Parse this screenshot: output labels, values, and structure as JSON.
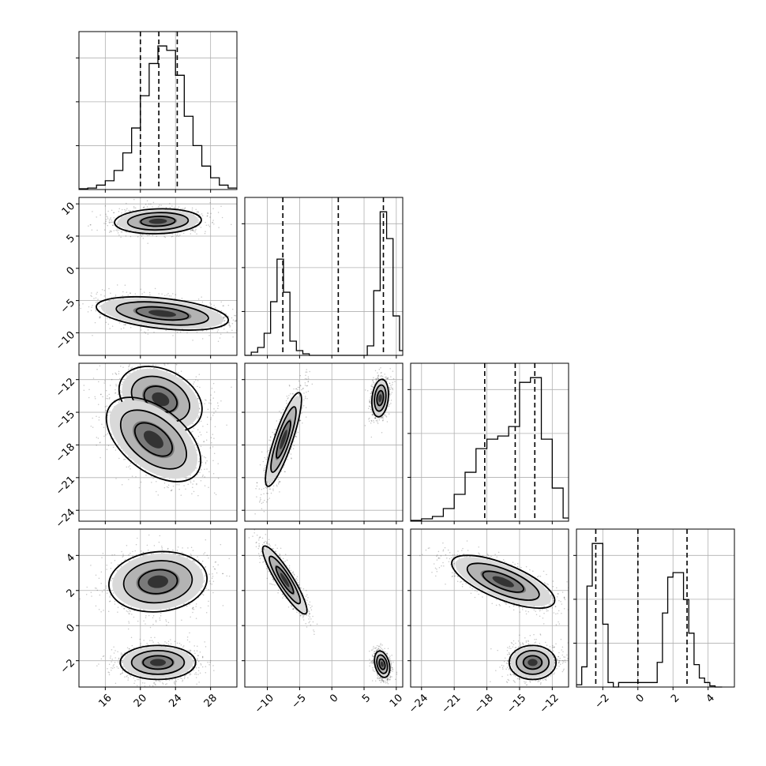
{
  "chart_data": {
    "type": "corner",
    "parameters": 4,
    "grid": true,
    "params": [
      {
        "range": [
          13,
          31
        ],
        "ticks": [
          16,
          20,
          24,
          28
        ],
        "tick_labels": [
          "16",
          "20",
          "24",
          "28"
        ]
      },
      {
        "range": [
          -13.5,
          11
        ],
        "ticks": [
          -10,
          -5,
          0,
          5,
          10
        ],
        "tick_labels": [
          "−10",
          "−5",
          "0",
          "5",
          "10"
        ]
      },
      {
        "range": [
          -25,
          -10.5
        ],
        "ticks": [
          -24,
          -21,
          -18,
          -15,
          -12
        ],
        "tick_labels": [
          "−24",
          "−21",
          "−18",
          "−15",
          "−12"
        ]
      },
      {
        "range": [
          -3.5,
          5.5
        ],
        "ticks": [
          -2,
          0,
          2,
          4
        ],
        "tick_labels": [
          "−2",
          "0",
          "2",
          "4"
        ]
      }
    ],
    "histograms": [
      {
        "param": 0,
        "edges": [
          13,
          14,
          15,
          16,
          17,
          18,
          19,
          20,
          21,
          22,
          23,
          24,
          25,
          26,
          27,
          28,
          29,
          30,
          31
        ],
        "counts": [
          0.5,
          1,
          3,
          6,
          13,
          25,
          42,
          64,
          86,
          98,
          95,
          78,
          50,
          30,
          16,
          8,
          3,
          1
        ],
        "quantiles": [
          20,
          22.1,
          24.2
        ]
      },
      {
        "param": 1,
        "edges": [
          -13.5,
          -12.5,
          -11.5,
          -10.5,
          -9.5,
          -8.5,
          -7.5,
          -6.5,
          -5.5,
          -4.5,
          -3.5,
          5.5,
          6.5,
          7.5,
          8.5,
          9.5,
          10.5,
          11
        ],
        "counts": [
          0,
          2,
          5,
          14,
          34,
          61,
          40,
          9,
          3,
          1,
          0,
          6,
          41,
          91,
          74,
          25,
          3
        ],
        "quantiles": [
          -7.6,
          1.0,
          8.0
        ]
      },
      {
        "param": 2,
        "edges": [
          -25,
          -24,
          -23,
          -22,
          -21,
          -20,
          -19,
          -18,
          -17,
          -16,
          -15,
          -14,
          -13,
          -12,
          -11,
          -10.5
        ],
        "counts": [
          0.5,
          1.5,
          3,
          8,
          17,
          31,
          46,
          52,
          54,
          60,
          88,
          91,
          52,
          21,
          2
        ],
        "quantiles": [
          -18.2,
          -15.4,
          -13.6
        ]
      },
      {
        "param": 3,
        "edges": [
          -3.5,
          -3.2,
          -2.9,
          -2.6,
          -2.3,
          -2.0,
          -1.7,
          -1.4,
          -1.1,
          1.1,
          1.4,
          1.7,
          2.0,
          2.3,
          2.6,
          2.9,
          3.2,
          3.5,
          3.8,
          4.1,
          4.4,
          4.8
        ],
        "counts": [
          1,
          9,
          45,
          64,
          64,
          28,
          2,
          0,
          2,
          11,
          33,
          49,
          51,
          51,
          39,
          24,
          10,
          4,
          2,
          0.5,
          0
        ],
        "quantiles": [
          -2.4,
          0,
          2.8
        ]
      }
    ],
    "scatter_panels": [
      {
        "x": 0,
        "y": 1,
        "modes": [
          {
            "mean": [
              22,
              7.3
            ],
            "sd": [
              2.3,
              0.9
            ],
            "corr": 0.1
          },
          {
            "mean": [
              22.5,
              -7
            ],
            "sd": [
              3.5,
              1.2
            ],
            "corr": -0.4
          }
        ]
      },
      {
        "x": 0,
        "y": 2,
        "modes": [
          {
            "mean": [
              22.3,
              -13.8
            ],
            "sd": [
              2.2,
              1.4
            ],
            "corr": -0.3
          },
          {
            "mean": [
              21.5,
              -17.5
            ],
            "sd": [
              2.5,
              1.8
            ],
            "corr": -0.5
          }
        ]
      },
      {
        "x": 0,
        "y": 3,
        "modes": [
          {
            "mean": [
              22,
              2.5
            ],
            "sd": [
              2.6,
              0.8
            ],
            "corr": 0.1
          },
          {
            "mean": [
              22,
              -2.1
            ],
            "sd": [
              2.0,
              0.45
            ],
            "corr": 0
          }
        ]
      },
      {
        "x": 1,
        "y": 2,
        "modes": [
          {
            "mean": [
              7.5,
              -13.7
            ],
            "sd": [
              0.6,
              0.8
            ],
            "corr": 0.2
          },
          {
            "mean": [
              -7.5,
              -17.5
            ],
            "sd": [
              1.3,
              2.0
            ],
            "corr": 0.85
          }
        ]
      },
      {
        "x": 1,
        "y": 3,
        "modes": [
          {
            "mean": [
              -7.3,
              2.6
            ],
            "sd": [
              1.6,
              0.9
            ],
            "corr": -0.9
          },
          {
            "mean": [
              7.8,
              -2.2
            ],
            "sd": [
              0.55,
              0.35
            ],
            "corr": -0.3
          }
        ]
      },
      {
        "x": 2,
        "y": 3,
        "modes": [
          {
            "mean": [
              -16.5,
              2.5
            ],
            "sd": [
              2.2,
              0.7
            ],
            "corr": -0.7
          },
          {
            "mean": [
              -13.8,
              -2.1
            ],
            "sd": [
              1.0,
              0.45
            ],
            "corr": 0
          }
        ]
      }
    ]
  }
}
